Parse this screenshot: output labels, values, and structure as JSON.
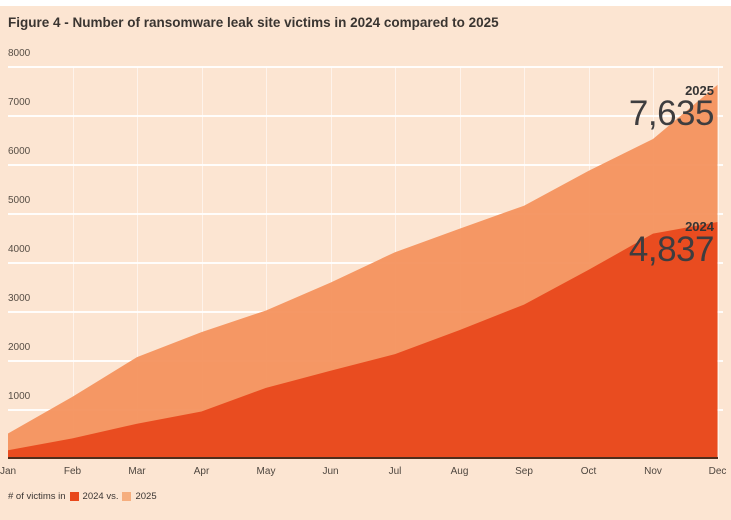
{
  "figure": {
    "title": "Figure 4 - Number of ransomware leak site victims in 2024 compared to 2025"
  },
  "chart_data": {
    "type": "area",
    "title": "Figure 4 - Number of ransomware leak site victims in 2024 compared to 2025",
    "x": [
      "Jan",
      "Feb",
      "Mar",
      "Apr",
      "May",
      "Jun",
      "Jul",
      "Aug",
      "Sep",
      "Oct",
      "Nov",
      "Dec"
    ],
    "series": [
      {
        "name": "2024",
        "color": "#e8481c",
        "values": [
          180,
          420,
          720,
          970,
          1450,
          1800,
          2140,
          2630,
          3150,
          3860,
          4600,
          4837
        ],
        "final_value_label": "4,837"
      },
      {
        "name": "2025",
        "color": "#f4925e",
        "values": [
          520,
          1270,
          2080,
          2590,
          3030,
          3600,
          4220,
          4700,
          5170,
          5880,
          6530,
          7635
        ],
        "final_value_label": "7,635"
      }
    ],
    "ylim": [
      0,
      8000
    ],
    "y_ticks": [
      8000,
      7000,
      6000,
      5000,
      4000,
      3000,
      2000,
      1000
    ],
    "grid": true,
    "legend_position": "bottom-left"
  },
  "annotations": [
    {
      "year": "2025",
      "value": "7,635"
    },
    {
      "year": "2024",
      "value": "4,837"
    }
  ],
  "legend": {
    "prefix": "# of victims in",
    "items": [
      {
        "label": "2024 vs.",
        "color": "#e8481c"
      },
      {
        "label": "2025",
        "color": "#f6ae7e"
      }
    ]
  },
  "colors": {
    "background": "#fce5d2",
    "axis_line": "#4f2d1c",
    "series_2024": "#e8481c",
    "series_2025": "#f4925e",
    "text": "#3a3531"
  }
}
